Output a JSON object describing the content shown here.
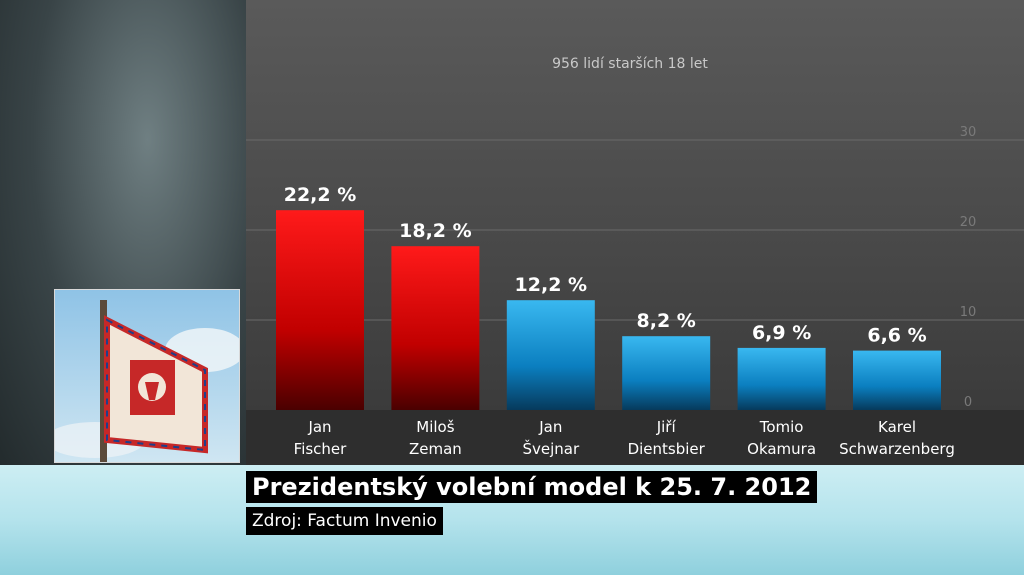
{
  "subtitle": "956 lidí starších 18 let",
  "headline": "Prezidentský volební model k 25. 7. 2012",
  "source": "Zdroj: Factum Invenio",
  "colors": {
    "red_bars": "#e30000",
    "blue_bars": "#1aa3e0"
  },
  "chart_data": {
    "type": "bar",
    "categories": [
      [
        "Jan",
        "Fischer"
      ],
      [
        "Miloš",
        "Zeman"
      ],
      [
        "Jan",
        "Švejnar"
      ],
      [
        "Jiří",
        "Dientsbier"
      ],
      [
        "Tomio",
        "Okamura"
      ],
      [
        "Karel",
        "Schwarzenberg"
      ]
    ],
    "values": [
      22.2,
      18.2,
      12.2,
      8.2,
      6.9,
      6.6
    ],
    "value_labels": [
      "22,2 %",
      "18,2 %",
      "12,2 %",
      "8,2 %",
      "6,9 %",
      "6,6 %"
    ],
    "bar_colors": [
      "red",
      "red",
      "blue",
      "blue",
      "blue",
      "blue"
    ],
    "yticks": [
      0,
      10,
      20,
      30
    ],
    "ylim": [
      0,
      30
    ],
    "grid": true
  }
}
